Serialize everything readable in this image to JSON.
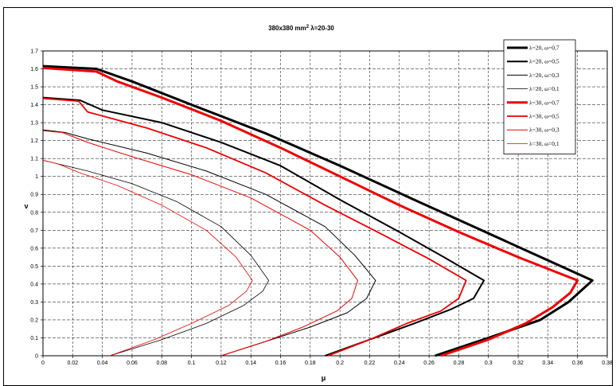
{
  "chart_data": {
    "type": "line",
    "title": "380x380 mm",
    "title_sup": "2",
    "title_rest": " λ=20-30",
    "xlabel": "μ",
    "ylabel": "ν",
    "xlim": [
      0,
      0.38
    ],
    "ylim": [
      0,
      1.7
    ],
    "xticks": [
      "0",
      "0.02",
      "0.04",
      "0.06",
      "0.08",
      "0.1",
      "0.12",
      "0.14",
      "0.16",
      "0.18",
      "0.2",
      "0.22",
      "0.24",
      "0.26",
      "0.28",
      "0.3",
      "0.32",
      "0.34",
      "0.36",
      "0.38"
    ],
    "yticks": [
      "0",
      "0.1",
      "0.2",
      "0.3",
      "0.4",
      "0.5",
      "0.6",
      "0.7",
      "0.8",
      "0.9",
      "1",
      "1.1",
      "1.2",
      "1.3",
      "1.4",
      "1.5",
      "1.6",
      "1.7"
    ],
    "grid": true,
    "legend_position": "top-right",
    "series": [
      {
        "name": "λ=20, ω=0,7",
        "color": "#000000",
        "width": 3,
        "points": [
          [
            0.264,
            0
          ],
          [
            0.3,
            0.1
          ],
          [
            0.335,
            0.2
          ],
          [
            0.354,
            0.3
          ],
          [
            0.37,
            0.42
          ],
          [
            0.33,
            0.57
          ],
          [
            0.29,
            0.72
          ],
          [
            0.25,
            0.87
          ],
          [
            0.2,
            1.06
          ],
          [
            0.15,
            1.24
          ],
          [
            0.1,
            1.4
          ],
          [
            0.06,
            1.53
          ],
          [
            0.036,
            1.6
          ],
          [
            0,
            1.615
          ]
        ]
      },
      {
        "name": "λ=20, ω=0,5",
        "color": "#000000",
        "width": 2,
        "points": [
          [
            0.19,
            0
          ],
          [
            0.22,
            0.09
          ],
          [
            0.25,
            0.18
          ],
          [
            0.275,
            0.26
          ],
          [
            0.29,
            0.32
          ],
          [
            0.297,
            0.42
          ],
          [
            0.27,
            0.55
          ],
          [
            0.24,
            0.69
          ],
          [
            0.2,
            0.87
          ],
          [
            0.16,
            1.06
          ],
          [
            0.12,
            1.19
          ],
          [
            0.08,
            1.3
          ],
          [
            0.04,
            1.37
          ],
          [
            0.025,
            1.425
          ],
          [
            0,
            1.44
          ]
        ]
      },
      {
        "name": "λ=20, ω=0,3",
        "color": "#000000",
        "width": 1,
        "points": [
          [
            0.12,
            0
          ],
          [
            0.15,
            0.08
          ],
          [
            0.18,
            0.16
          ],
          [
            0.205,
            0.24
          ],
          [
            0.218,
            0.32
          ],
          [
            0.224,
            0.42
          ],
          [
            0.21,
            0.56
          ],
          [
            0.19,
            0.72
          ],
          [
            0.15,
            0.9
          ],
          [
            0.11,
            1.03
          ],
          [
            0.07,
            1.13
          ],
          [
            0.03,
            1.21
          ],
          [
            0.015,
            1.245
          ],
          [
            0,
            1.26
          ]
        ]
      },
      {
        "name": "λ=20, ω=0,1",
        "color": "#000000",
        "width": 0.8,
        "points": [
          [
            0.045,
            0
          ],
          [
            0.08,
            0.09
          ],
          [
            0.11,
            0.18
          ],
          [
            0.135,
            0.28
          ],
          [
            0.148,
            0.36
          ],
          [
            0.152,
            0.42
          ],
          [
            0.14,
            0.56
          ],
          [
            0.12,
            0.72
          ],
          [
            0.09,
            0.86
          ],
          [
            0.06,
            0.96
          ],
          [
            0.03,
            1.03
          ],
          [
            0.01,
            1.07
          ],
          [
            0,
            1.09
          ]
        ]
      },
      {
        "name": "λ=30, ω=0,7",
        "color": "#ee0000",
        "width": 3,
        "points": [
          [
            0.268,
            0
          ],
          [
            0.3,
            0.09
          ],
          [
            0.325,
            0.18
          ],
          [
            0.343,
            0.27
          ],
          [
            0.355,
            0.35
          ],
          [
            0.36,
            0.42
          ],
          [
            0.32,
            0.55
          ],
          [
            0.28,
            0.69
          ],
          [
            0.24,
            0.84
          ],
          [
            0.2,
            1.0
          ],
          [
            0.16,
            1.16
          ],
          [
            0.12,
            1.31
          ],
          [
            0.08,
            1.44
          ],
          [
            0.05,
            1.53
          ],
          [
            0.036,
            1.585
          ],
          [
            0,
            1.605
          ]
        ]
      },
      {
        "name": "λ=30, ω=0,5",
        "color": "#ee0000",
        "width": 1.8,
        "points": [
          [
            0.192,
            0
          ],
          [
            0.22,
            0.09
          ],
          [
            0.245,
            0.18
          ],
          [
            0.268,
            0.25
          ],
          [
            0.28,
            0.32
          ],
          [
            0.285,
            0.42
          ],
          [
            0.26,
            0.54
          ],
          [
            0.23,
            0.67
          ],
          [
            0.19,
            0.84
          ],
          [
            0.15,
            1.02
          ],
          [
            0.11,
            1.16
          ],
          [
            0.07,
            1.27
          ],
          [
            0.03,
            1.36
          ],
          [
            0.024,
            1.42
          ],
          [
            0,
            1.435
          ]
        ]
      },
      {
        "name": "λ=30, ω=0,3",
        "color": "#ee0000",
        "width": 1,
        "points": [
          [
            0.12,
            0
          ],
          [
            0.15,
            0.08
          ],
          [
            0.175,
            0.16
          ],
          [
            0.198,
            0.25
          ],
          [
            0.208,
            0.32
          ],
          [
            0.212,
            0.42
          ],
          [
            0.2,
            0.55
          ],
          [
            0.18,
            0.7
          ],
          [
            0.14,
            0.88
          ],
          [
            0.1,
            1.01
          ],
          [
            0.06,
            1.11
          ],
          [
            0.03,
            1.19
          ],
          [
            0.013,
            1.245
          ],
          [
            0,
            1.255
          ]
        ]
      },
      {
        "name": "λ=30, ω=0,1",
        "color": "#ee0000",
        "width": 0.8,
        "points": [
          [
            0.045,
            0
          ],
          [
            0.075,
            0.09
          ],
          [
            0.1,
            0.18
          ],
          [
            0.125,
            0.28
          ],
          [
            0.137,
            0.36
          ],
          [
            0.141,
            0.42
          ],
          [
            0.13,
            0.55
          ],
          [
            0.11,
            0.7
          ],
          [
            0.08,
            0.84
          ],
          [
            0.05,
            0.95
          ],
          [
            0.025,
            1.02
          ],
          [
            0.01,
            1.07
          ],
          [
            0,
            1.09
          ]
        ]
      }
    ]
  }
}
